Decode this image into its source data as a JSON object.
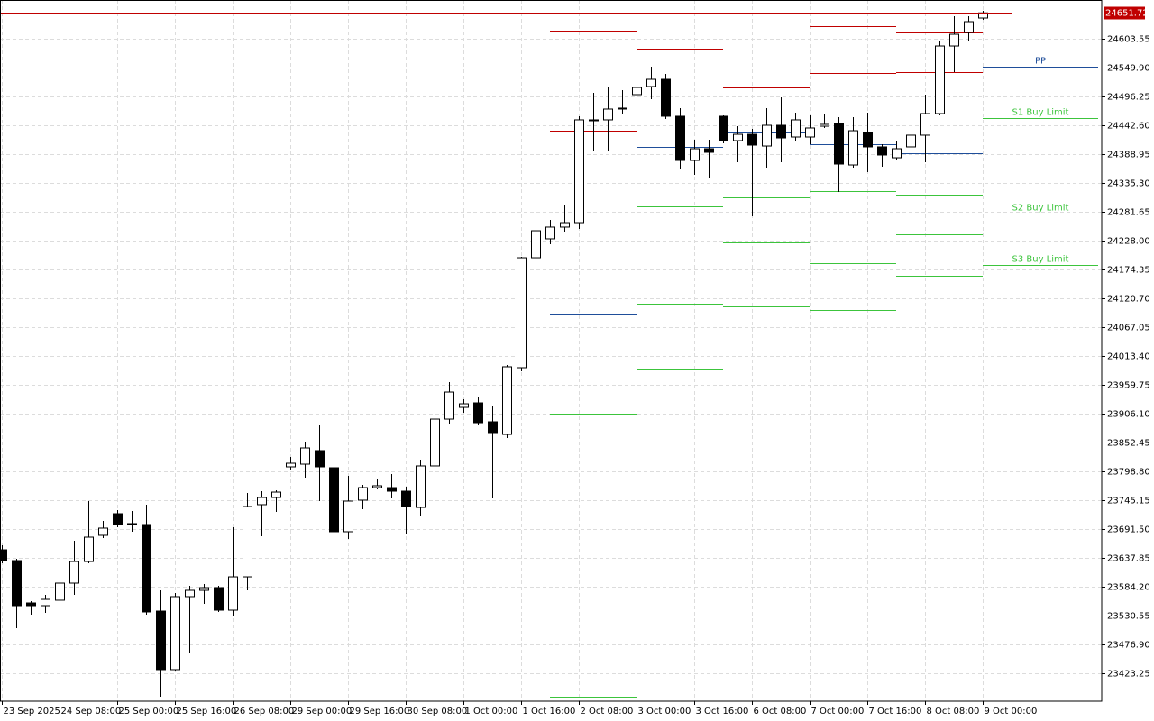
{
  "chart_data": {
    "type": "candlestick",
    "categories": [
      "23 Sep 2025",
      null,
      null,
      null,
      "24 Sep 08:00",
      null,
      null,
      null,
      "25 Sep 00:00",
      null,
      null,
      null,
      "25 Sep 16:00",
      null,
      null,
      null,
      "26 Sep 08:00",
      null,
      null,
      null,
      "29 Sep 00:00",
      null,
      null,
      null,
      "29 Sep 16:00",
      null,
      null,
      null,
      "30 Sep 08:00",
      null,
      null,
      null,
      "1 Oct 00:00",
      null,
      null,
      null,
      "1 Oct 16:00",
      null,
      null,
      null,
      "2 Oct 08:00",
      null,
      null,
      null,
      "3 Oct 00:00",
      null,
      null,
      null,
      "3 Oct 16:00",
      null,
      null,
      null,
      "6 Oct 08:00",
      null,
      null,
      null,
      "7 Oct 00:00",
      null,
      null,
      null,
      "7 Oct 16:00",
      null,
      null,
      null,
      "8 Oct 08:00",
      null,
      null,
      null,
      "9 Oct 00:00"
    ],
    "open": [
      23652.9,
      23632.8,
      23554.0,
      23549.0,
      23559.1,
      23590.9,
      23631.1,
      23679.8,
      23720.0,
      23701.6,
      23699.9,
      23538.9,
      23430.0,
      23565.8,
      23577.5,
      23582.5,
      23540.6,
      23602.6,
      23736.8,
      23750.2,
      23807.2,
      23812.2,
      23837.4,
      23805.5,
      23686.5,
      23745.2,
      23768.6,
      23768.6,
      23761.9,
      23731.7,
      23808.9,
      23896.0,
      23917.8,
      23926.2,
      23891.0,
      23867.5,
      23991.6,
      24196.1,
      24231.4,
      24253.2,
      24261.5,
      24451.0,
      24452.7,
      24472.8,
      24499.6,
      24514.7,
      24528.1,
      24459.4,
      24377.2,
      24399.0,
      24459.4,
      24414.1,
      24425.8,
      24404.0,
      24442.6,
      24420.8,
      24420.8,
      24440.9,
      24446.0,
      24368.8,
      24429.2,
      24402.4,
      24382.2,
      24402.4,
      24424.2,
      24464.4,
      24590.1,
      24615.3,
      24642.1
    ],
    "high": [
      23661.3,
      23636.2,
      23557.4,
      23569.1,
      23632.8,
      23669.7,
      23743.5,
      23706.6,
      23726.7,
      23725.0,
      23736.8,
      23577.5,
      23572.5,
      23585.9,
      23589.2,
      23585.9,
      23694.9,
      23758.6,
      23761.9,
      23763.6,
      23825.6,
      23854.1,
      23884.3,
      23807.2,
      23790.4,
      23773.7,
      23783.7,
      23793.8,
      23770.3,
      23820.6,
      23906.1,
      23964.8,
      23932.9,
      23936.3,
      23919.5,
      23996.6,
      24197.8,
      24276.6,
      24266.6,
      24295.1,
      24459.4,
      24503.0,
      24513.0,
      24508.0,
      24521.4,
      24551.6,
      24538.2,
      24474.5,
      24415.8,
      24415.8,
      24461.0,
      24440.9,
      24435.9,
      24474.5,
      24494.6,
      24466.1,
      24461.0,
      24464.4,
      24457.7,
      24457.7,
      24466.1,
      24407.4,
      24412.4,
      24432.5,
      24499.6,
      24598.5,
      24645.5,
      24645.5,
      24655.5
    ],
    "low": [
      23627.8,
      23507.1,
      23532.2,
      23535.6,
      23502.1,
      23569.1,
      23627.8,
      23674.7,
      23694.9,
      23686.5,
      23532.2,
      23379.7,
      23426.6,
      23460.1,
      23552.3,
      23537.3,
      23530.6,
      23577.5,
      23678.1,
      23723.4,
      23800.5,
      23787.1,
      23743.5,
      23683.1,
      23673.1,
      23728.4,
      23765.3,
      23748.5,
      23681.4,
      23716.7,
      23802.2,
      23887.7,
      23907.8,
      23884.3,
      23748.5,
      23860.8,
      23984.9,
      24192.8,
      24221.3,
      24244.8,
      24249.8,
      24394.0,
      24394.0,
      24464.4,
      24482.8,
      24491.2,
      24454.3,
      24360.5,
      24350.4,
      24343.7,
      24409.1,
      24373.9,
      24273.3,
      24363.8,
      24373.9,
      24414.1,
      24407.4,
      24437.6,
      24318.5,
      24363.8,
      24355.4,
      24365.5,
      24377.2,
      24394.0,
      24373.9,
      24461.0,
      24541.5,
      24600.2,
      24638.8
    ],
    "close": [
      23632.8,
      23549.0,
      23549.0,
      23560.7,
      23590.9,
      23631.1,
      23676.4,
      23693.2,
      23699.9,
      23699.9,
      23537.3,
      23430.0,
      23565.8,
      23577.5,
      23582.5,
      23540.6,
      23602.6,
      23733.4,
      23750.2,
      23760.2,
      23813.9,
      23842.4,
      23807.2,
      23686.5,
      23743.5,
      23768.6,
      23772.0,
      23761.9,
      23733.4,
      23808.9,
      23896.0,
      23946.3,
      23924.5,
      23889.3,
      23870.9,
      23993.3,
      24196.1,
      24246.4,
      24253.2,
      24261.5,
      24452.7,
      24452.7,
      24472.8,
      24474.5,
      24513.0,
      24528.1,
      24459.4,
      24377.2,
      24399.0,
      24392.3,
      24414.1,
      24425.8,
      24405.7,
      24442.6,
      24419.1,
      24452.7,
      24437.6,
      24444.3,
      24370.5,
      24432.5,
      24402.4,
      24387.3,
      24399.0,
      24424.2,
      24464.4,
      24590.1,
      24611.9,
      24635.4,
      24651.72
    ],
    "up_color": "#ffffff",
    "down_color": "#000000",
    "ylim": [
      23371.28,
      24675.64
    ],
    "yticks": [
      23423.25,
      {
        "value": 23476.9,
        "label": "23476.90"
      },
      23530.55,
      {
        "value": 23584.2,
        "label": "23584.20"
      },
      23637.85,
      {
        "value": 23691.5,
        "label": "23691.50"
      },
      23745.15,
      {
        "value": 23798.8,
        "label": "23798.80"
      },
      23852.45,
      {
        "value": 23906.1,
        "label": "23906.10"
      },
      23959.75,
      {
        "value": 24013.4,
        "label": "24013.40"
      },
      24067.05,
      {
        "value": 24120.7,
        "label": "24120.70"
      },
      24174.35,
      {
        "value": 24228.0,
        "label": "24228.00"
      },
      24281.65,
      {
        "value": 24335.3,
        "label": "24335.30"
      },
      24388.95,
      {
        "value": 24442.6,
        "label": "24442.60"
      },
      24496.25,
      {
        "value": 24549.9,
        "label": "24549.90"
      },
      24603.55
    ],
    "grid": true,
    "current_price": 24651.72,
    "current_price_color": "#c00000",
    "pivot_levels": {
      "resistance_color": "#c00000",
      "pivot_color": "#1f4e9a",
      "support_color": "#3cc43c",
      "periods": [
        {
          "resistance": [
            24618.6,
            24432.5
          ],
          "pivot": 24092.2,
          "support": [
            23906.1,
            23564.1,
            23379.7
          ]
        },
        {
          "resistance": [
            24585.1
          ],
          "pivot": 24402.4,
          "support": [
            24291.7,
            24110.6,
            23990.0
          ]
        },
        {
          "resistance": [
            24633.7,
            24513.0
          ],
          "pivot": 24429.2,
          "support": [
            24308.5,
            24224.6,
            24105.6
          ]
        },
        {
          "resistance": [
            24627.0,
            24539.8
          ],
          "pivot": 24407.4,
          "support": [
            24320.2,
            24186.1,
            24098.9
          ]
        },
        {
          "resistance": [
            24615.3,
            24541.5,
            24464.4
          ],
          "pivot": 24390.6,
          "support": [
            24313.5,
            24239.7,
            24162.6
          ]
        },
        {
          "resistance": [],
          "pivot": 24551.6,
          "support": [
            24456.0,
            24278.3,
            24182.7
          ],
          "pivot_label": "PP",
          "support_labels": [
            "S1 Buy Limit",
            "S2 Buy Limit",
            "S3 Buy Limit"
          ]
        }
      ]
    }
  }
}
